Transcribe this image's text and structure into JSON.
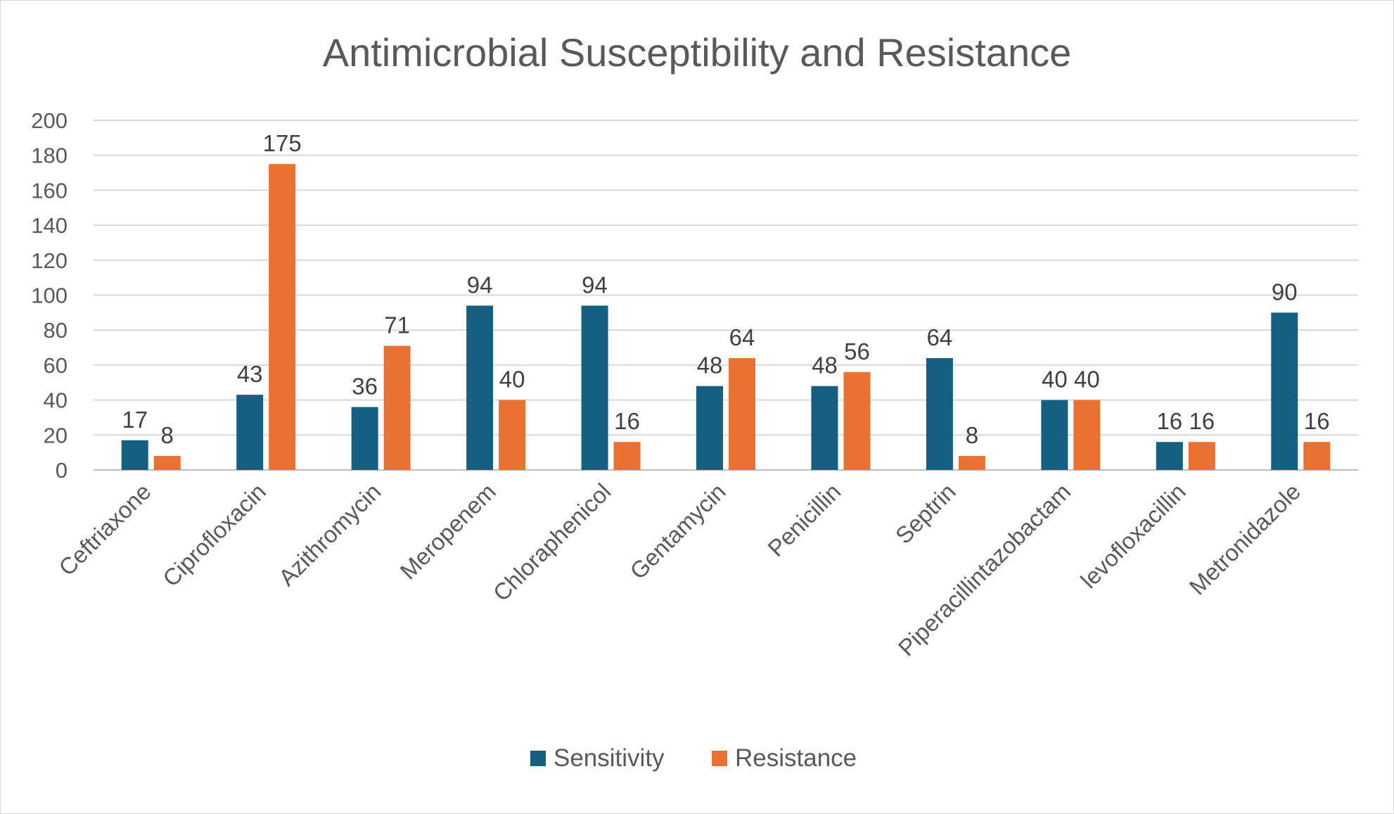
{
  "chart_data": {
    "type": "bar",
    "title": "Antimicrobial Susceptibility and Resistance",
    "categories": [
      "Ceftriaxone",
      "Ciprofloxacin",
      "Azithromycin",
      "Meropenem",
      "Chloraphenicol",
      "Gentamycin",
      "Penicillin",
      "Septrin",
      "Piperacillintazobactam",
      "levofloxacillin",
      "Metronidazole"
    ],
    "series": [
      {
        "name": "Sensitivity",
        "color": "#156082",
        "values": [
          17,
          43,
          36,
          94,
          94,
          48,
          48,
          64,
          40,
          16,
          90
        ]
      },
      {
        "name": "Resistance",
        "color": "#E97132",
        "values": [
          8,
          175,
          71,
          40,
          16,
          64,
          56,
          8,
          40,
          16,
          16
        ]
      }
    ],
    "y_ticks": [
      "0",
      "20",
      "40",
      "60",
      "80",
      "100",
      "120",
      "140",
      "160",
      "180",
      "200"
    ],
    "ylim": [
      0,
      200
    ],
    "grid": true,
    "legend_position": "bottom",
    "data_labels": true
  }
}
